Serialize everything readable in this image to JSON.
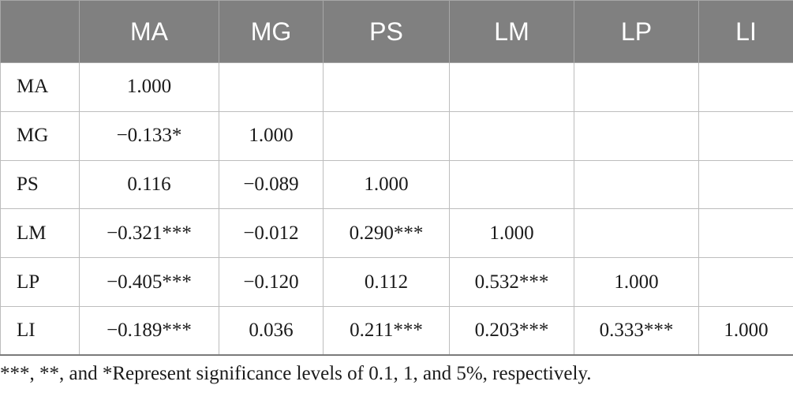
{
  "table": {
    "columns": [
      "MA",
      "MG",
      "PS",
      "LM",
      "LP",
      "LI"
    ],
    "rows": [
      {
        "label": "MA",
        "cells": [
          "1.000",
          "",
          "",
          "",
          "",
          ""
        ]
      },
      {
        "label": "MG",
        "cells": [
          "−0.133*",
          "1.000",
          "",
          "",
          "",
          ""
        ]
      },
      {
        "label": "PS",
        "cells": [
          "0.116",
          "−0.089",
          "1.000",
          "",
          "",
          ""
        ]
      },
      {
        "label": "LM",
        "cells": [
          "−0.321***",
          "−0.012",
          "0.290***",
          "1.000",
          "",
          ""
        ]
      },
      {
        "label": "LP",
        "cells": [
          "−0.405***",
          "−0.120",
          "0.112",
          "0.532***",
          "1.000",
          ""
        ]
      },
      {
        "label": "LI",
        "cells": [
          "−0.189***",
          "0.036",
          "0.211***",
          "0.203***",
          "0.333***",
          "1.000"
        ]
      }
    ]
  },
  "footnote": "***, **, and *Represent significance levels of 0.1, 1, and 5%, respectively."
}
